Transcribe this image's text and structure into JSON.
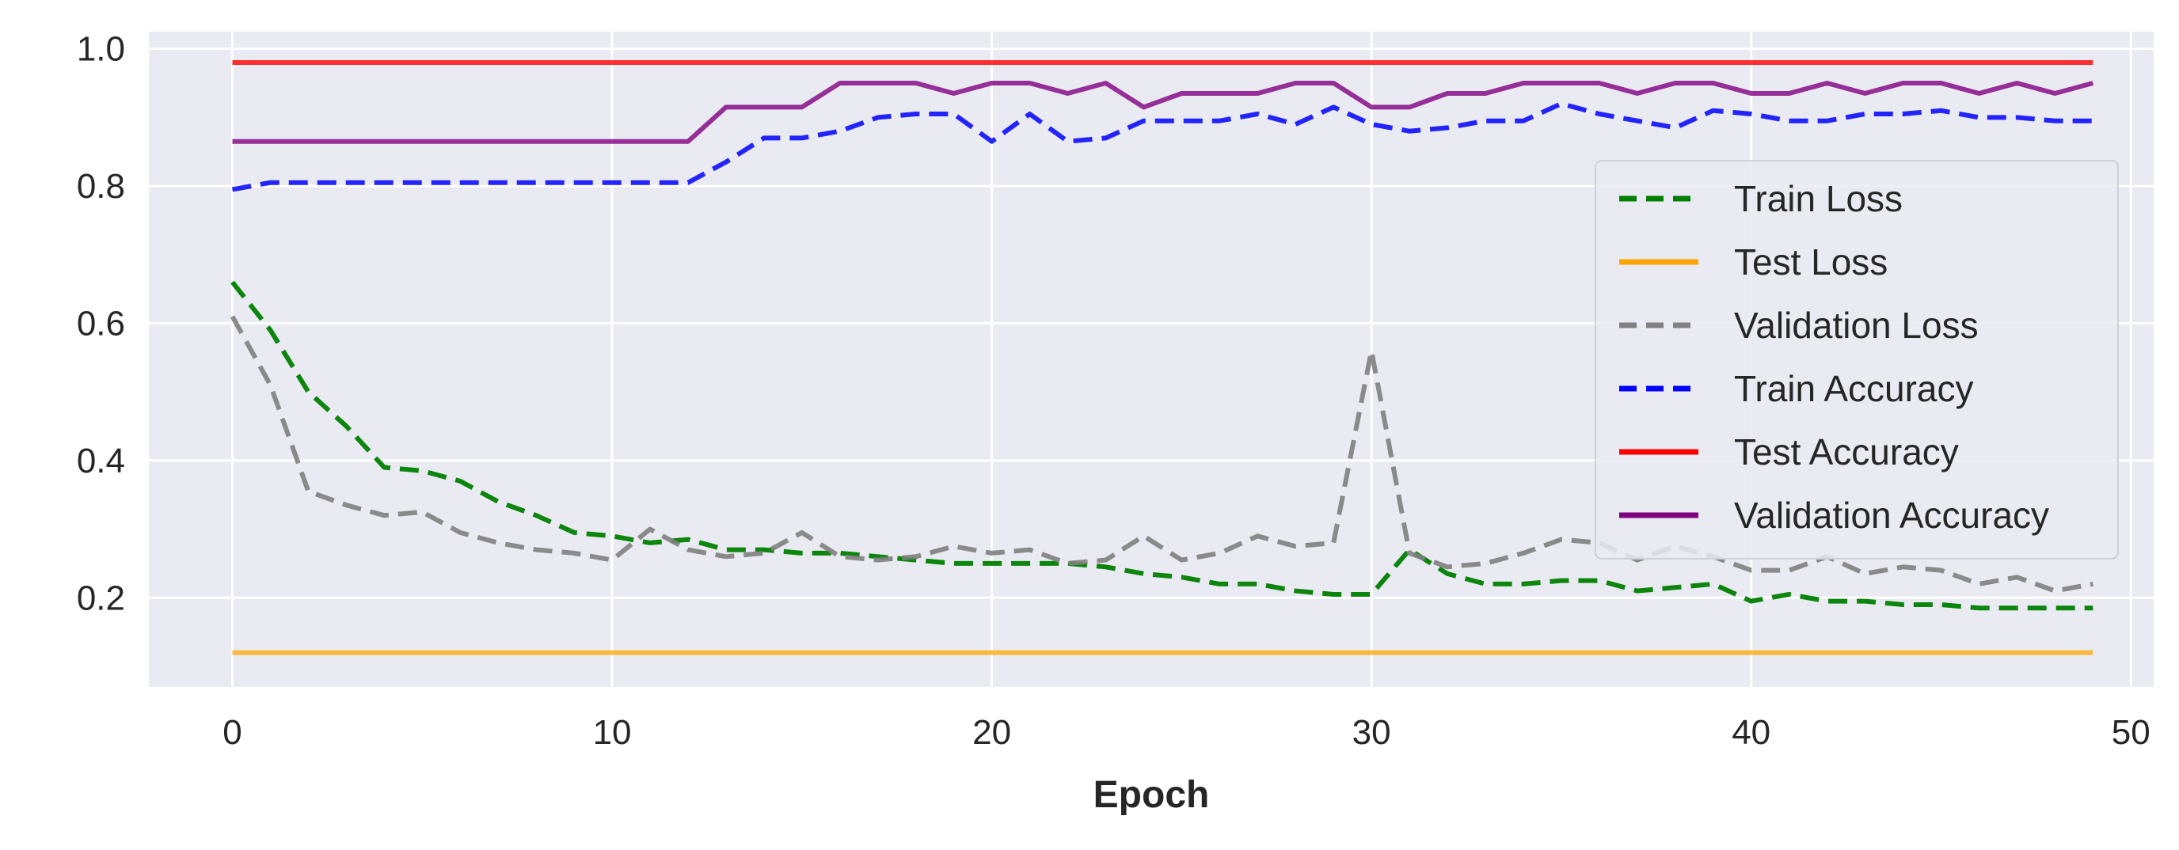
{
  "chart_data": {
    "type": "line",
    "title": "",
    "xlabel": "Epoch",
    "ylabel": "",
    "xlim": [
      -2.2,
      50.6
    ],
    "ylim": [
      0.07,
      1.025
    ],
    "xticks": [
      0,
      10,
      20,
      30,
      40,
      50
    ],
    "xtick_labels": [
      "0",
      "10",
      "20",
      "30",
      "40",
      "50"
    ],
    "yticks": [
      0.2,
      0.4,
      0.6,
      0.8,
      1.0
    ],
    "ytick_labels": [
      "0.2",
      "0.4",
      "0.6",
      "0.8",
      "1.0"
    ],
    "grid": true,
    "background": "#eaeaf2",
    "legend_position": "right",
    "x": [
      0,
      1,
      2,
      3,
      4,
      5,
      6,
      7,
      8,
      9,
      10,
      11,
      12,
      13,
      14,
      15,
      16,
      17,
      18,
      19,
      20,
      21,
      22,
      23,
      24,
      25,
      26,
      27,
      28,
      29,
      30,
      31,
      32,
      33,
      34,
      35,
      36,
      37,
      38,
      39,
      40,
      41,
      42,
      43,
      44,
      45,
      46,
      47,
      48,
      49
    ],
    "series": [
      {
        "name": "Train Loss",
        "color": "#008000",
        "dash": "dashed",
        "values": [
          0.66,
          0.59,
          0.5,
          0.45,
          0.39,
          0.385,
          0.37,
          0.34,
          0.32,
          0.295,
          0.29,
          0.28,
          0.285,
          0.27,
          0.27,
          0.265,
          0.265,
          0.26,
          0.255,
          0.25,
          0.25,
          0.25,
          0.25,
          0.245,
          0.235,
          0.23,
          0.22,
          0.22,
          0.21,
          0.205,
          0.205,
          0.27,
          0.235,
          0.22,
          0.22,
          0.225,
          0.225,
          0.21,
          0.215,
          0.22,
          0.195,
          0.205,
          0.195,
          0.195,
          0.19,
          0.19,
          0.185,
          0.185,
          0.185,
          0.185
        ]
      },
      {
        "name": "Test Loss",
        "color": "#ffa500",
        "dash": "solid",
        "values": [
          0.12,
          0.12,
          0.12,
          0.12,
          0.12,
          0.12,
          0.12,
          0.12,
          0.12,
          0.12,
          0.12,
          0.12,
          0.12,
          0.12,
          0.12,
          0.12,
          0.12,
          0.12,
          0.12,
          0.12,
          0.12,
          0.12,
          0.12,
          0.12,
          0.12,
          0.12,
          0.12,
          0.12,
          0.12,
          0.12,
          0.12,
          0.12,
          0.12,
          0.12,
          0.12,
          0.12,
          0.12,
          0.12,
          0.12,
          0.12,
          0.12,
          0.12,
          0.12,
          0.12,
          0.12,
          0.12,
          0.12,
          0.12,
          0.12,
          0.12
        ]
      },
      {
        "name": "Validation Loss",
        "color": "#808080",
        "dash": "dashed",
        "values": [
          0.61,
          0.51,
          0.355,
          0.335,
          0.32,
          0.325,
          0.295,
          0.28,
          0.27,
          0.265,
          0.255,
          0.3,
          0.27,
          0.26,
          0.265,
          0.295,
          0.26,
          0.255,
          0.26,
          0.275,
          0.265,
          0.27,
          0.25,
          0.255,
          0.29,
          0.255,
          0.265,
          0.29,
          0.275,
          0.28,
          0.56,
          0.265,
          0.245,
          0.25,
          0.265,
          0.285,
          0.28,
          0.255,
          0.275,
          0.26,
          0.24,
          0.24,
          0.26,
          0.235,
          0.245,
          0.24,
          0.22,
          0.23,
          0.21,
          0.22
        ]
      },
      {
        "name": "Train Accuracy",
        "color": "#0000ff",
        "dash": "dashed",
        "values": [
          0.795,
          0.805,
          0.805,
          0.805,
          0.805,
          0.805,
          0.805,
          0.805,
          0.805,
          0.805,
          0.805,
          0.805,
          0.805,
          0.835,
          0.87,
          0.87,
          0.88,
          0.9,
          0.905,
          0.905,
          0.865,
          0.905,
          0.865,
          0.87,
          0.895,
          0.895,
          0.895,
          0.905,
          0.89,
          0.915,
          0.89,
          0.88,
          0.885,
          0.895,
          0.895,
          0.92,
          0.905,
          0.895,
          0.885,
          0.91,
          0.905,
          0.895,
          0.895,
          0.905,
          0.905,
          0.91,
          0.9,
          0.9,
          0.895,
          0.895
        ]
      },
      {
        "name": "Test Accuracy",
        "color": "#ff0000",
        "dash": "solid",
        "values": [
          0.98,
          0.98,
          0.98,
          0.98,
          0.98,
          0.98,
          0.98,
          0.98,
          0.98,
          0.98,
          0.98,
          0.98,
          0.98,
          0.98,
          0.98,
          0.98,
          0.98,
          0.98,
          0.98,
          0.98,
          0.98,
          0.98,
          0.98,
          0.98,
          0.98,
          0.98,
          0.98,
          0.98,
          0.98,
          0.98,
          0.98,
          0.98,
          0.98,
          0.98,
          0.98,
          0.98,
          0.98,
          0.98,
          0.98,
          0.98,
          0.98,
          0.98,
          0.98,
          0.98,
          0.98,
          0.98,
          0.98,
          0.98,
          0.98,
          0.98
        ]
      },
      {
        "name": "Validation Accuracy",
        "color": "#800080",
        "dash": "solid",
        "values": [
          0.865,
          0.865,
          0.865,
          0.865,
          0.865,
          0.865,
          0.865,
          0.865,
          0.865,
          0.865,
          0.865,
          0.865,
          0.865,
          0.915,
          0.915,
          0.915,
          0.95,
          0.95,
          0.95,
          0.935,
          0.95,
          0.95,
          0.935,
          0.95,
          0.915,
          0.935,
          0.935,
          0.935,
          0.95,
          0.95,
          0.915,
          0.915,
          0.935,
          0.935,
          0.95,
          0.95,
          0.95,
          0.935,
          0.95,
          0.95,
          0.935,
          0.935,
          0.95,
          0.935,
          0.95,
          0.95,
          0.935,
          0.95,
          0.935,
          0.95
        ]
      }
    ]
  }
}
